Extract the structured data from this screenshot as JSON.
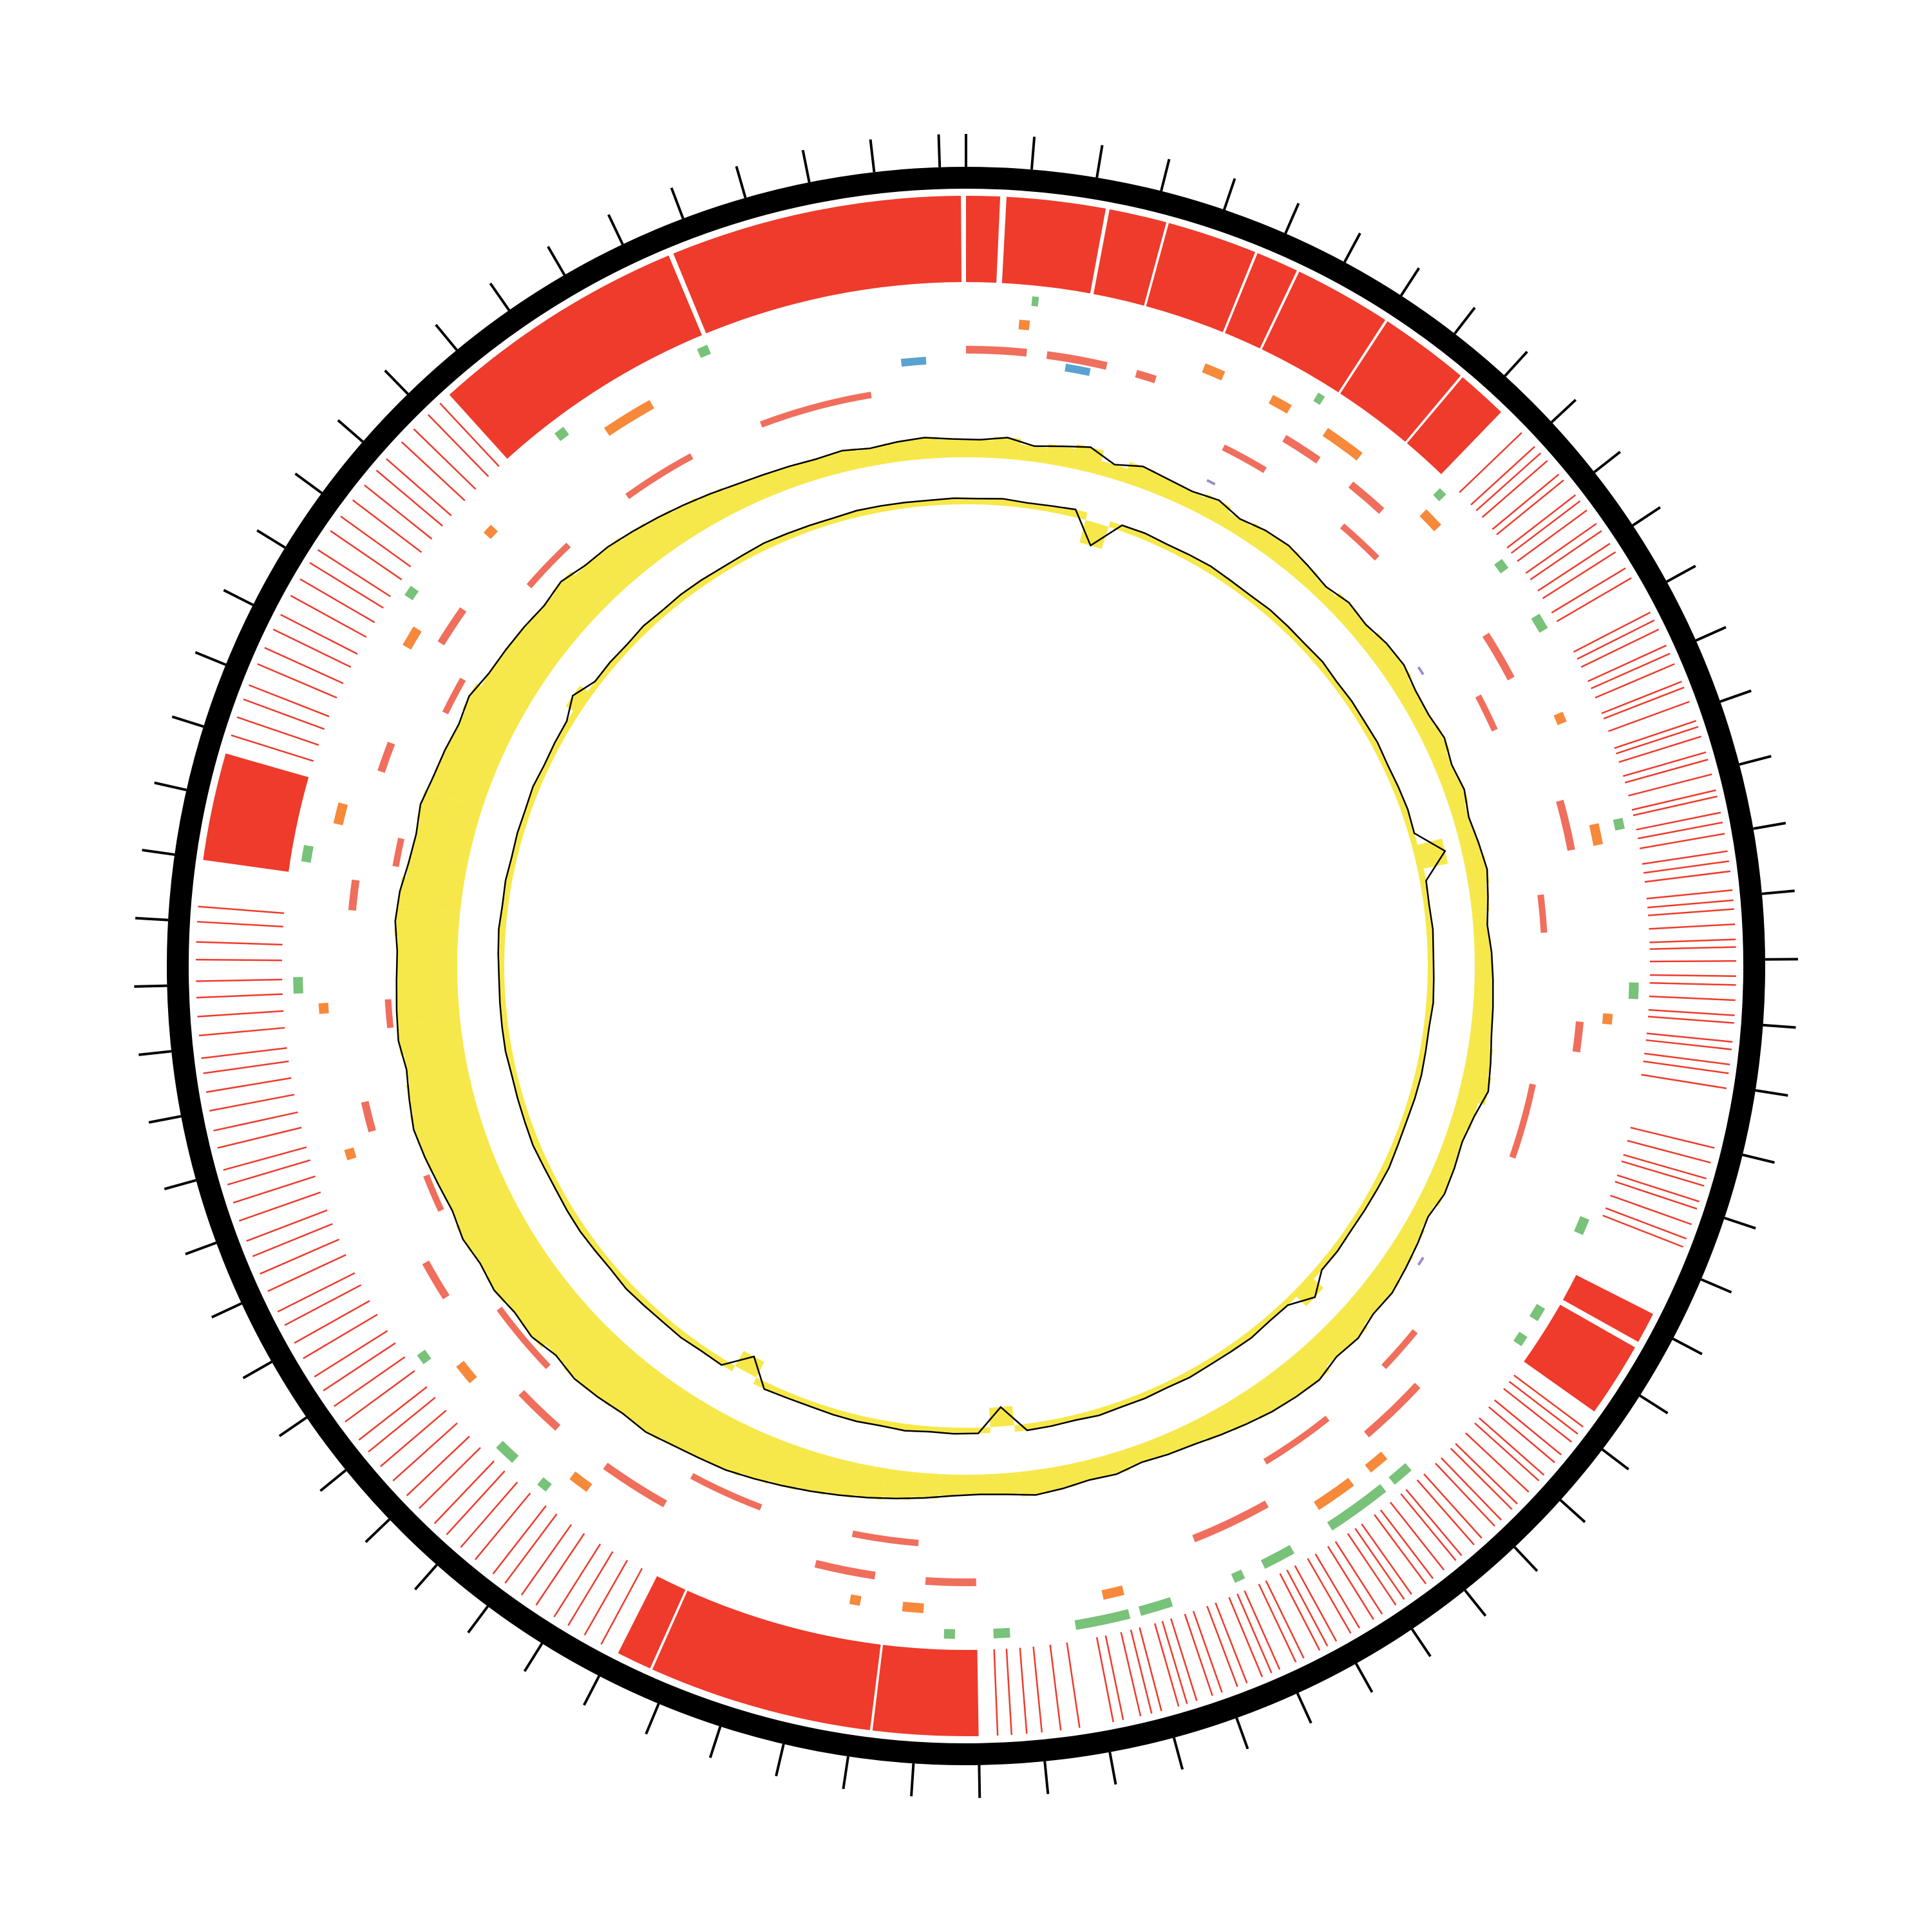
{
  "chart_data": {
    "type": "circos",
    "xlim": [
      0,
      382
    ],
    "xticks": [
      0,
      5,
      10,
      15,
      20,
      25,
      30,
      35,
      40,
      45,
      50,
      55,
      60,
      65,
      70,
      75,
      80,
      85,
      90,
      95,
      100,
      105,
      110,
      115,
      120,
      125,
      130,
      135,
      140,
      145,
      150,
      155,
      160,
      165,
      170,
      175,
      180,
      185,
      190,
      195,
      200,
      205,
      210,
      215,
      220,
      225,
      230,
      235,
      240,
      245,
      250,
      255,
      260,
      265,
      270,
      275,
      280,
      285,
      290,
      295,
      300,
      305,
      310,
      315,
      320,
      325,
      330,
      335,
      340,
      345,
      350,
      355,
      360,
      365,
      370,
      375,
      380
    ],
    "tracks": [
      {
        "color": "#ee3b2c",
        "features": [
          [
            337.3,
            357.9
          ],
          [
            358.3,
            381.6
          ],
          [
            0,
            2.7
          ],
          [
            3.2,
            11.1
          ],
          [
            11.4,
            16
          ],
          [
            16.2,
            23.4
          ],
          [
            23.6,
            27
          ],
          [
            27.2,
            35
          ],
          [
            35.2,
            42.4
          ],
          [
            42.6,
            46.7
          ],
          [
            294.9,
            303.5
          ],
          [
            190,
            198.4
          ],
          [
            198.6,
            216.5
          ],
          [
            216.7,
            219.5
          ],
          [
            124,
            126.5
          ],
          [
            127,
            133
          ]
        ],
        "lines": [
          49,
          50.5,
          51.2,
          52,
          53.4,
          54,
          55.5,
          56.1,
          57,
          58.3,
          59,
          60.2,
          61,
          62.5,
          63.4,
          66.5,
          67.2,
          68,
          69.4,
          70.1,
          71,
          72.5,
          73,
          74.2,
          75.8,
          76.3,
          77.1,
          78.4,
          79,
          80.2,
          81.5,
          82,
          83.3,
          84.1,
          85,
          86.4,
          87.2,
          88,
          89.5,
          90.3,
          91,
          92.2,
          93.4,
          94,
          95.1,
          96.3,
          97,
          98.2,
          99.4,
          100,
          101.5,
          102.1,
          103.3,
          104,
          105.2,
          110,
          111.2,
          112.5,
          113.1,
          114.4,
          115,
          116.3,
          117.5,
          118.2,
          134.5,
          135.2,
          136,
          137.3,
          138.1,
          139.4,
          140,
          141.2,
          142.5,
          143.1,
          144.3,
          145,
          146.4,
          147.2,
          148.5,
          149.1,
          150.3,
          151.4,
          152.1,
          153.5,
          154.2,
          155,
          156.3,
          157.1,
          158.4,
          159.2,
          160.5,
          161.3,
          162,
          163.4,
          164.1,
          165.5,
          166.2,
          167,
          168.3,
          169.1,
          170.4,
          171.2,
          172.5,
          173.3,
          174,
          175.4,
          176.2,
          177.1,
          178.5,
          179.3,
          182,
          183.5,
          185,
          186.2,
          187.4,
          188.5,
          221,
          222.5,
          224,
          225.3,
          227,
          228.4,
          230,
          231.2,
          233,
          234.5,
          236,
          237.3,
          239,
          240.4,
          242,
          243.5,
          245,
          246.2,
          248,
          249.5,
          251,
          252.3,
          254,
          255.4,
          257,
          258.2,
          260,
          261.5,
          263,
          264.3,
          266,
          267.5,
          269,
          270.2,
          272,
          273.4,
          275,
          276.5,
          278,
          279.2,
          281,
          282.5,
          284,
          285.3,
          287,
          288.4,
          290,
          291.2,
          305,
          306.5,
          308,
          309.2,
          311,
          312.4,
          314,
          315.3,
          317,
          318.5,
          320,
          321.2,
          323,
          324.4,
          326,
          327.5,
          329,
          330.2,
          332,
          333.4,
          335,
          336.3
        ]
      },
      {
        "color": "#78c27a",
        "features": [
          [
            6,
            6.6
          ],
          [
            33.5,
            34.2
          ],
          [
            47.5,
            48.3
          ],
          [
            56,
            57
          ],
          [
            62,
            63.5
          ],
          [
            82,
            83
          ],
          [
            97,
            98.5
          ],
          [
            119,
            120.5
          ],
          [
            128,
            129.3
          ],
          [
            131,
            132
          ],
          [
            147,
            149
          ],
          [
            150,
            156
          ],
          [
            160,
            163
          ],
          [
            165,
            166
          ],
          [
            172,
            175
          ],
          [
            176,
            181
          ],
          [
            187,
            188.5
          ],
          [
            192,
            193
          ],
          [
            232,
            233
          ],
          [
            236,
            238
          ],
          [
            248,
            249
          ],
          [
            284,
            285.5
          ],
          [
            296,
            297.5
          ],
          [
            322,
            323
          ],
          [
            342,
            343
          ],
          [
            357,
            358
          ]
        ]
      },
      {
        "color": "#f7893b",
        "features": [
          [
            5,
            6
          ],
          [
            23,
            25
          ],
          [
            30,
            32
          ],
          [
            36,
            40
          ],
          [
            48,
            50
          ],
          [
            71,
            72
          ],
          [
            82,
            84
          ],
          [
            100,
            101
          ],
          [
            148,
            150
          ],
          [
            152,
            156
          ],
          [
            176,
            178
          ],
          [
            195,
            197
          ],
          [
            201,
            202
          ],
          [
            229,
            231
          ],
          [
            244,
            246
          ],
          [
            268,
            269
          ],
          [
            282,
            283
          ],
          [
            300,
            302
          ],
          [
            318,
            320
          ],
          [
            331,
            332
          ],
          [
            346,
            351
          ]
        ]
      },
      {
        "color": "#f06e5c",
        "features": [
          [
            0,
            6
          ],
          [
            8,
            14
          ],
          [
            17,
            19
          ],
          [
            33,
            37
          ],
          [
            41,
            45
          ],
          [
            61,
            66
          ],
          [
            79,
            84
          ],
          [
            101,
            104
          ],
          [
            141,
            148
          ],
          [
            160,
            168
          ],
          [
            190,
            195
          ],
          [
            200,
            206
          ],
          [
            222,
            229
          ],
          [
            235,
            240
          ],
          [
            252,
            256
          ],
          [
            270,
            273
          ],
          [
            292,
            295
          ],
          [
            306,
            309
          ],
          [
            320,
            324
          ]
        ]
      },
      {
        "color": "#5aa2d0",
        "features": [
          [
            375.5,
            378
          ],
          [
            10,
            12.5
          ]
        ]
      },
      {
        "color": "#f06e5c",
        "features": [
          [
            344,
            352
          ],
          [
            360,
            372
          ],
          [
            28,
            33
          ],
          [
            43,
            48
          ],
          [
            66,
            70
          ],
          [
            88,
            92
          ],
          [
            108,
            116
          ],
          [
            137,
            142
          ],
          [
            150,
            158
          ],
          [
            196,
            203
          ],
          [
            213,
            221
          ],
          [
            240,
            248
          ],
          [
            260,
            264
          ],
          [
            280,
            283
          ],
          [
            297,
            300
          ],
          [
            314,
            318
          ],
          [
            330,
            336
          ]
        ]
      },
      {
        "color": "#9b8cc4",
        "features": [
          [
            28,
            29
          ],
          [
            60,
            61
          ],
          [
            130,
            131
          ],
          [
            250,
            251
          ],
          [
            262,
            263
          ],
          [
            272,
            273
          ]
        ]
      }
    ],
    "gc_content": {
      "color": "#f6e84a",
      "line_color": "#000000",
      "values": [
        0.25,
        0.3,
        0.22,
        0.28,
        0.35,
        0.2,
        0.3,
        0.26,
        0.24,
        0.3,
        0.22,
        0.28,
        0.3,
        0.25,
        0.2,
        0.27,
        0.24,
        0.3,
        0.32,
        0.26,
        0.25,
        0.3,
        0.24,
        0.28,
        0.22,
        0.26,
        0.3,
        0.25,
        0.2,
        0.24,
        0.26,
        0.28,
        0.3,
        0.35,
        0.4,
        0.3,
        0.25,
        0.28,
        0.3,
        0.24,
        0.3,
        0.35,
        0.4,
        0.38,
        0.45,
        0.42,
        0.5,
        0.48,
        0.45,
        0.4,
        0.35,
        0.3,
        0.28,
        0.25,
        0.3,
        0.28,
        0.32,
        0.35,
        0.3,
        0.28,
        0.3,
        0.35,
        0.4,
        0.45,
        0.5,
        0.55,
        0.6,
        0.65,
        0.7,
        0.72,
        0.75,
        0.8,
        0.78,
        0.82,
        0.85,
        0.8,
        0.88,
        0.85,
        0.9,
        0.86,
        0.9,
        0.85,
        0.88,
        0.92,
        0.95,
        0.9,
        0.85,
        0.9,
        0.88,
        0.86,
        0.85,
        0.9,
        0.88,
        0.82,
        0.8,
        0.85,
        0.8,
        0.78,
        0.75,
        0.8,
        0.72,
        0.7,
        0.68,
        0.65,
        0.7,
        0.62,
        0.6,
        0.55,
        0.5,
        0.45,
        0.4,
        0.35,
        0.32,
        0.3,
        0.28,
        0.3,
        0.25,
        0.28,
        0.3,
        0.26
      ]
    },
    "gc_skew": {
      "color": "#f6e84a",
      "line_color": "#000000",
      "values": [
        0.15,
        0.18,
        0.14,
        0.16,
        0.2,
        -0.6,
        0.15,
        0.17,
        0.14,
        0.16,
        0.18,
        0.15,
        0.14,
        0.17,
        0.16,
        0.15,
        0.18,
        0.14,
        0.16,
        0.15,
        0.17,
        0.14,
        0.16,
        0.18,
        0.15,
        0.8,
        0.16,
        0.14,
        0.17,
        0.15,
        0.16,
        0.18,
        0.14,
        0.15,
        0.17,
        0.16,
        0.14,
        0.15,
        0.18,
        0.16,
        0.15,
        0.14,
        0.17,
        0.16,
        0.5,
        0.15,
        0.14,
        0.18,
        0.16,
        0.15,
        0.17,
        0.14,
        0.16,
        0.15,
        0.18,
        0.14,
        0.16,
        0.17,
        -0.5,
        0.15,
        0.16,
        0.14,
        0.18,
        0.15,
        0.17,
        0.16,
        0.14,
        0.15,
        0.18,
        -0.45,
        0.16,
        0.14,
        0.17,
        0.15,
        0.16,
        0.18,
        0.14,
        0.15,
        0.17,
        0.16,
        0.14,
        0.15,
        0.18,
        0.16,
        0.15,
        0.14,
        0.17,
        0.16,
        0.15,
        0.14,
        0.16,
        0.18,
        0.15,
        0.17,
        0.14,
        0.16,
        0.15,
        0.18,
        0.14,
        0.16,
        0.17,
        0.4,
        0.15,
        0.16,
        0.14,
        0.18,
        0.15,
        0.17,
        0.16,
        0.14,
        0.15,
        0.18,
        0.16,
        0.15,
        0.14,
        0.17,
        0.16,
        0.15,
        0.14,
        0.16
      ]
    }
  }
}
